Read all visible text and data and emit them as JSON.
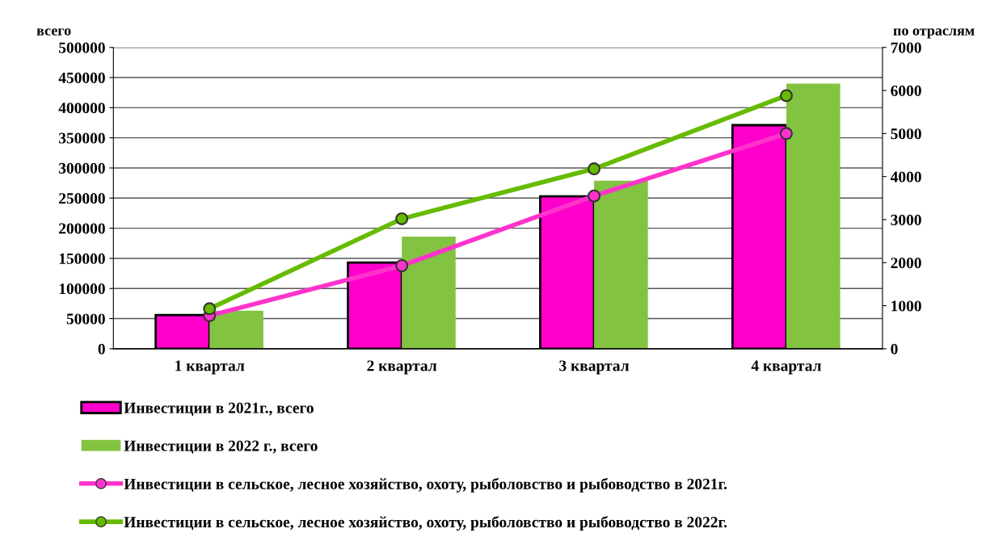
{
  "chart_data": {
    "type": "bar",
    "ylabel": "всего",
    "y2label": "по отраслям",
    "categories": [
      "1 квартал",
      "2 квартал",
      "3 квартал",
      "4 квартал"
    ],
    "series": [
      {
        "name": "Инвестиции в 2021г., всего",
        "color": "#ff00cc",
        "values": [
          56000,
          143000,
          253000,
          371000
        ]
      },
      {
        "name": "Инвестиции в 2022 г., всего",
        "color": "#82c341",
        "values": [
          63000,
          186000,
          279000,
          440000
        ]
      },
      {
        "name": "Инвестиции в сельское, лесное хозяйство, охоту, рыболовство и рыбоводство в 2021г.",
        "type": "line",
        "axis": "y2",
        "color": "#ff33cc",
        "marker": "circle",
        "values": [
          770,
          1930,
          3550,
          5000
        ]
      },
      {
        "name": "Инвестиции в сельское, лесное хозяйство, охоту, рыболовство и рыбоводство в 2022г.",
        "type": "line",
        "axis": "y2",
        "color": "#66bb00",
        "marker": "circle",
        "values": [
          930,
          3020,
          4180,
          5880
        ]
      }
    ],
    "ylim": [
      0,
      500000
    ],
    "yticks": [
      0,
      50000,
      100000,
      150000,
      200000,
      250000,
      300000,
      350000,
      400000,
      450000,
      500000
    ],
    "y2lim": [
      0,
      7000
    ],
    "y2ticks": [
      0,
      1000,
      2000,
      3000,
      4000,
      5000,
      6000,
      7000
    ],
    "grid": "y",
    "legend": "bottom"
  }
}
